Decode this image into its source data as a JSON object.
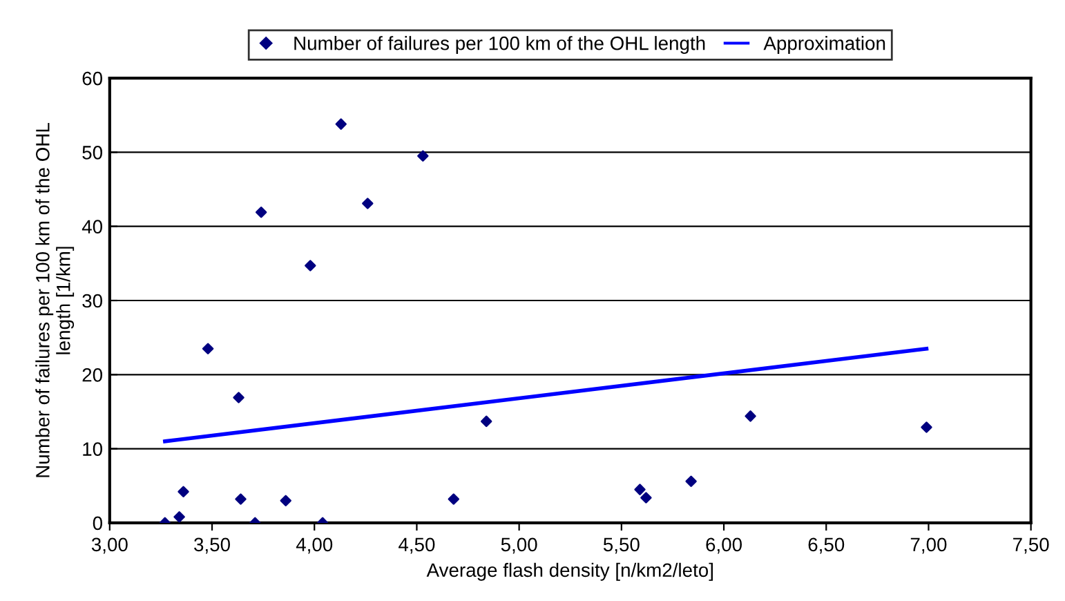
{
  "chart_data": {
    "type": "scatter",
    "xlabel": "Average flash density [n/km2/leto]",
    "ylabel": "Number of failures per 100 km of the OHL\nlength [1/km]",
    "series": [
      {
        "name": "Number of failures per 100 km of the OHL length",
        "color": "#000080",
        "marker": "diamond",
        "x": [
          3.27,
          3.34,
          3.36,
          3.48,
          3.63,
          3.64,
          3.71,
          3.74,
          3.86,
          3.98,
          4.04,
          4.13,
          4.26,
          4.53,
          4.68,
          4.84,
          5.59,
          5.62,
          5.84,
          6.13,
          6.99
        ],
        "values": [
          0,
          0.8,
          4.2,
          23.5,
          16.9,
          3.2,
          0,
          41.9,
          3.0,
          34.7,
          0,
          53.8,
          43.1,
          49.5,
          3.2,
          13.7,
          4.5,
          3.4,
          5.6,
          14.4,
          12.9
        ]
      },
      {
        "name": "Approximation",
        "type": "line",
        "color": "#0000ff",
        "x": [
          3.27,
          6.99
        ],
        "values": [
          11.0,
          23.5
        ]
      }
    ],
    "xlim": [
      3.0,
      7.5
    ],
    "xticks": [
      {
        "value": 3.0,
        "label": "3,00"
      },
      {
        "value": 3.5,
        "label": "3,50"
      },
      {
        "value": 4.0,
        "label": "4,00"
      },
      {
        "value": 4.5,
        "label": "4,50"
      },
      {
        "value": 5.0,
        "label": "5,00"
      },
      {
        "value": 5.5,
        "label": "5,50"
      },
      {
        "value": 6.0,
        "label": "6,00"
      },
      {
        "value": 6.5,
        "label": "6,50"
      },
      {
        "value": 7.0,
        "label": "7,00"
      },
      {
        "value": 7.5,
        "label": "7,50"
      }
    ],
    "ylim": [
      0,
      60
    ],
    "yticks": [
      0,
      10,
      20,
      30,
      40,
      50,
      60
    ],
    "grid": "y",
    "legend": "top"
  }
}
